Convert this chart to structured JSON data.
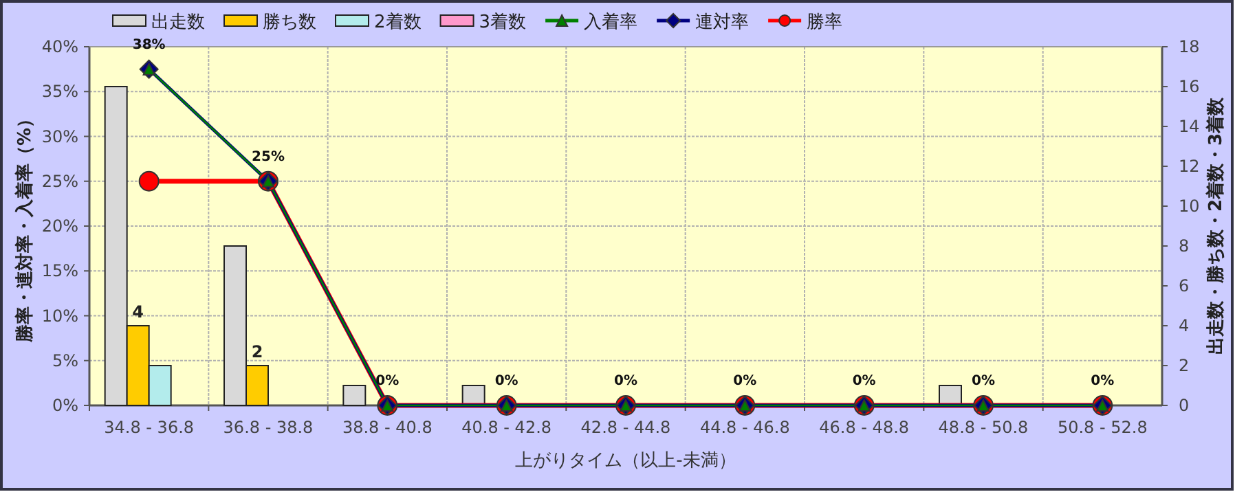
{
  "chart_data": {
    "type": "bar",
    "xlabel": "上がりタイム（以上-未満）",
    "ylabel": "勝率・連対率・入着率（%）",
    "y2label": "出走数・勝ち数・2着数・3着数",
    "categories": [
      "34.8 - 36.8",
      "36.8 - 38.8",
      "38.8 - 40.8",
      "40.8 - 42.8",
      "42.8 - 44.8",
      "44.8 - 46.8",
      "46.8 - 48.8",
      "48.8 - 50.8",
      "50.8 - 52.8"
    ],
    "series": [
      {
        "name": "出走数",
        "axis": "y2",
        "color": "#d9d9d9",
        "values": [
          16,
          8,
          1,
          1,
          0,
          0,
          0,
          1,
          0
        ]
      },
      {
        "name": "勝ち数",
        "axis": "y2",
        "color": "#ffcc00",
        "values": [
          4,
          2,
          0,
          0,
          0,
          0,
          0,
          0,
          0
        ],
        "value_labels": [
          "4",
          "2",
          null,
          null,
          null,
          null,
          null,
          null,
          null
        ]
      },
      {
        "name": "2着数",
        "axis": "y2",
        "color": "#b3ecec",
        "values": [
          2,
          0,
          0,
          0,
          0,
          0,
          0,
          0,
          0
        ]
      },
      {
        "name": "3着数",
        "axis": "y2",
        "color": "#ff99cc",
        "values": [
          0,
          0,
          0,
          0,
          0,
          0,
          0,
          0,
          0
        ]
      },
      {
        "name": "入着率",
        "type": "line",
        "axis": "y",
        "color": "#008000",
        "marker": "triangle",
        "values": [
          37.5,
          25,
          0,
          0,
          0,
          0,
          0,
          0,
          0
        ]
      },
      {
        "name": "連対率",
        "type": "line",
        "axis": "y",
        "color": "#000080",
        "marker": "diamond",
        "values": [
          37.5,
          25,
          0,
          0,
          0,
          0,
          0,
          0,
          0
        ],
        "value_labels": [
          "38%",
          "25%",
          "0%",
          "0%",
          "0%",
          "0%",
          "0%",
          "0%",
          "0%"
        ]
      },
      {
        "name": "勝率",
        "type": "line",
        "axis": "y",
        "color": "#ff0000",
        "marker": "circle",
        "values": [
          25,
          25,
          0,
          0,
          0,
          0,
          0,
          0,
          0
        ]
      }
    ],
    "ylim": [
      0,
      40
    ],
    "yticks": [
      {
        "value": 0,
        "label": "0%"
      },
      {
        "value": 5,
        "label": "5%"
      },
      {
        "value": 10,
        "label": "10%"
      },
      {
        "value": 15,
        "label": "15%"
      },
      {
        "value": 20,
        "label": "20%"
      },
      {
        "value": 25,
        "label": "25%"
      },
      {
        "value": 30,
        "label": "30%"
      },
      {
        "value": 35,
        "label": "35%"
      },
      {
        "value": 40,
        "label": "40%"
      }
    ],
    "y2lim": [
      0,
      18
    ],
    "y2ticks": [
      0,
      2,
      4,
      6,
      8,
      10,
      12,
      14,
      16,
      18
    ],
    "grid": true,
    "legend": "top"
  }
}
